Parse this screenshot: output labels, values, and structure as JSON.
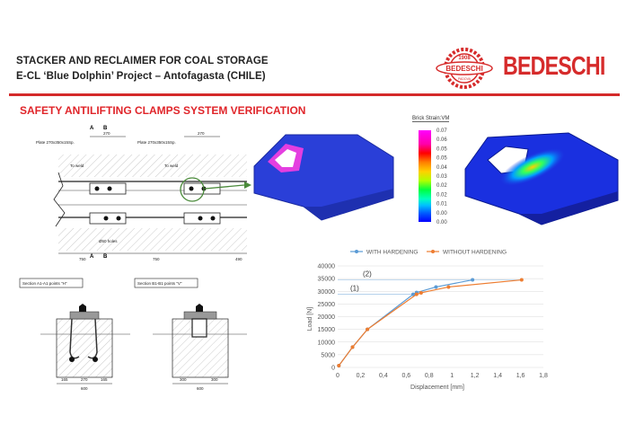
{
  "header": {
    "title_line1": "STACKER AND RECLAIMER FOR COAL STORAGE",
    "title_line2": "E-CL ‘Blue Dolphin’ Project – Antofagasta (CHILE)",
    "logo": {
      "year": "1908",
      "name": "BEDESCHI",
      "city": "PADOVA",
      "wordmark": "BEDESCHI",
      "color": "#d62b2b"
    }
  },
  "section_title": "SAFETY ANTILIFTING CLAMPS SYSTEM VERIFICATION",
  "plan_drawing": {
    "plate_label_left": "Plate 270x350x15Sp.",
    "plate_label_right": "Plate 270x350x15Sp.",
    "weld_left": "To weld",
    "weld_right": "To weld",
    "marker_a": "A",
    "marker_b": "B",
    "dim_total": "270",
    "dim_a": "58",
    "dim_b": "172",
    "dim_c": "40",
    "dim_d": "100",
    "dim_e": "72",
    "dim_left": "750",
    "dim_mid": "750",
    "dim_right": "490",
    "hole_note": "Ø50 holes"
  },
  "sections": {
    "a_label": "Section A1-A1 points \"H\"",
    "b_label": "Section B1-B1 points \"V\"",
    "a_width": "600",
    "b_width": "600",
    "a_dims": [
      "165",
      "270",
      "165"
    ],
    "b_dims": [
      "300",
      "300"
    ]
  },
  "fea": {
    "colorbar_title": "Brick Strain:VM",
    "colorbar_ticks": [
      "0.07",
      "0.06",
      "0.05",
      "0.05",
      "0.04",
      "0.03",
      "0.02",
      "0.02",
      "0.01",
      "0.00",
      "0.00"
    ]
  },
  "chart_data": {
    "type": "line",
    "xlabel": "Displacement [mm]",
    "ylabel": "Load [N]",
    "xlim": [
      0,
      1.8
    ],
    "ylim": [
      0,
      40000
    ],
    "xticks": [
      "0",
      "0,2",
      "0,4",
      "0,6",
      "0,8",
      "1",
      "1,2",
      "1,4",
      "1,6",
      "1,8"
    ],
    "yticks": [
      "0",
      "5000",
      "10000",
      "15000",
      "20000",
      "25000",
      "30000",
      "35000",
      "40000"
    ],
    "grid": "horizontal",
    "legend": "top",
    "annotations": [
      {
        "text": "(1)",
        "y": 28800
      },
      {
        "text": "(2)",
        "y": 34500
      }
    ],
    "series": [
      {
        "name": "WITH HARDENING",
        "color": "#5b9bd5",
        "x": [
          0.01,
          0.13,
          0.26,
          0.66,
          0.69,
          0.86,
          1.18
        ],
        "y": [
          700,
          8000,
          15000,
          28800,
          29500,
          31700,
          34500
        ]
      },
      {
        "name": "WITHOUT HARDENING",
        "color": "#ed7d31",
        "x": [
          0.01,
          0.13,
          0.26,
          0.69,
          0.73,
          0.97,
          1.61
        ],
        "y": [
          700,
          8000,
          15000,
          28800,
          29400,
          31700,
          34500
        ]
      }
    ]
  }
}
